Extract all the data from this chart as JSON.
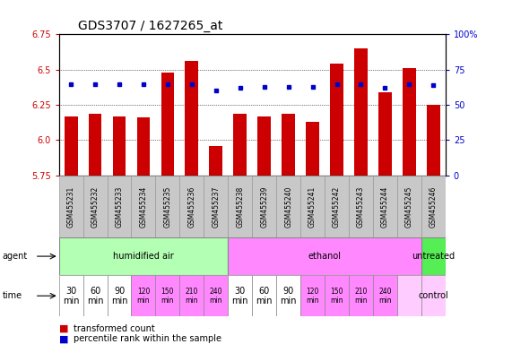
{
  "title": "GDS3707 / 1627265_at",
  "samples": [
    "GSM455231",
    "GSM455232",
    "GSM455233",
    "GSM455234",
    "GSM455235",
    "GSM455236",
    "GSM455237",
    "GSM455238",
    "GSM455239",
    "GSM455240",
    "GSM455241",
    "GSM455242",
    "GSM455243",
    "GSM455244",
    "GSM455245",
    "GSM455246"
  ],
  "red_values": [
    6.17,
    6.19,
    6.17,
    6.16,
    6.48,
    6.56,
    5.96,
    6.19,
    6.17,
    6.19,
    6.13,
    6.54,
    6.65,
    6.34,
    6.51,
    6.25
  ],
  "blue_values": [
    65,
    65,
    65,
    65,
    65,
    65,
    60,
    62,
    63,
    63,
    63,
    65,
    65,
    62,
    65,
    64
  ],
  "ylim_left": [
    5.75,
    6.75
  ],
  "ylim_right": [
    0,
    100
  ],
  "yticks_left": [
    5.75,
    6.0,
    6.25,
    6.5,
    6.75
  ],
  "yticks_right": [
    0,
    25,
    50,
    75,
    100
  ],
  "ytick_labels_right": [
    "0",
    "25",
    "50",
    "75",
    "100%"
  ],
  "agent_groups": [
    {
      "label": "humidified air",
      "start": 0,
      "end": 7,
      "color": "#b3ffb3"
    },
    {
      "label": "ethanol",
      "start": 7,
      "end": 15,
      "color": "#ff88ff"
    },
    {
      "label": "untreated",
      "start": 15,
      "end": 16,
      "color": "#55ee55"
    }
  ],
  "time_colors_list": [
    "#ffffff",
    "#ffffff",
    "#ffffff",
    "#ff88ff",
    "#ff88ff",
    "#ff88ff",
    "#ff88ff",
    "#ffffff",
    "#ffffff",
    "#ffffff",
    "#ff88ff",
    "#ff88ff",
    "#ff88ff",
    "#ff88ff",
    "#ffccff",
    "#ffccff"
  ],
  "time_labels_30_90": [
    "30\nmin",
    "60\nmin",
    "90\nmin"
  ],
  "time_labels_120_240": [
    "120\nmin",
    "150\nmin",
    "210\nmin",
    "240\nmin"
  ],
  "bar_color": "#cc0000",
  "dot_color": "#0000cc",
  "bar_bottom": 5.75,
  "background_color": "#ffffff",
  "title_fontsize": 10,
  "tick_fontsize": 7,
  "sample_fontsize": 5.5,
  "row_fontsize": 7,
  "legend_fontsize": 7,
  "sample_bg": "#c8c8c8",
  "sample_border": "#999999"
}
